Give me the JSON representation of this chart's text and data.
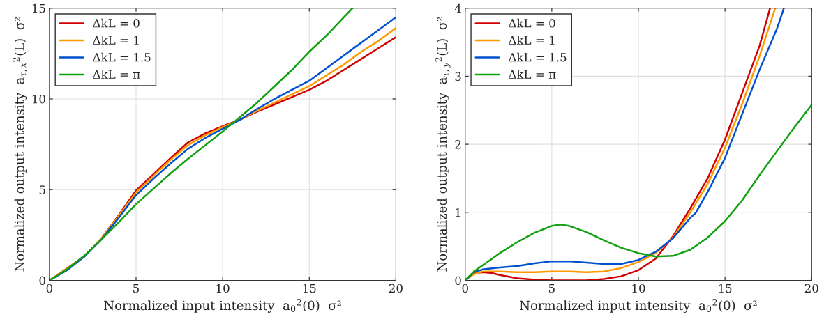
{
  "chart_data": [
    {
      "type": "line",
      "xlabel": "Normalized input intensity  a$_{0}$$^{2}$(0)  σ²",
      "ylabel": "Normalized output intensity  a$_{τ,x}$$^{2}$(L)  σ²",
      "xlim": [
        0,
        20
      ],
      "ylim": [
        0,
        15
      ],
      "xticks": [
        0,
        5,
        10,
        15,
        20
      ],
      "yticks": [
        0,
        5,
        10,
        15
      ],
      "grid": true,
      "legend": "top left",
      "line_style": "solid",
      "series": [
        {
          "name": "ΔkL = 0",
          "color": "#d00000",
          "x": [
            0,
            2,
            3,
            4,
            5,
            6,
            7,
            8,
            9,
            10,
            11,
            12,
            13,
            14,
            15,
            16,
            17,
            18,
            19,
            20
          ],
          "values": [
            0,
            1.3,
            2.3,
            3.6,
            4.95,
            5.85,
            6.75,
            7.6,
            8.1,
            8.5,
            8.85,
            9.3,
            9.7,
            10.1,
            10.5,
            11.0,
            11.6,
            12.2,
            12.8,
            13.4
          ]
        },
        {
          "name": "ΔkL = 1",
          "color": "#ff9900",
          "x": [
            0,
            2,
            3,
            4,
            5,
            6,
            7,
            8,
            9,
            10,
            11,
            12,
            13,
            14,
            15,
            16,
            17,
            18,
            19,
            20
          ],
          "values": [
            0,
            1.3,
            2.3,
            3.55,
            4.85,
            5.75,
            6.65,
            7.45,
            8.0,
            8.45,
            8.85,
            9.35,
            9.8,
            10.25,
            10.7,
            11.3,
            11.9,
            12.6,
            13.2,
            13.9
          ]
        },
        {
          "name": "ΔkL = 1.5",
          "color": "#0050d0",
          "x": [
            0,
            1,
            2,
            3,
            4,
            5,
            6,
            7,
            8,
            9,
            10,
            11,
            12,
            13,
            14,
            15,
            16,
            17,
            18,
            19,
            20
          ],
          "values": [
            0,
            0.55,
            1.3,
            2.25,
            3.45,
            4.7,
            5.6,
            6.45,
            7.25,
            7.85,
            8.35,
            8.85,
            9.45,
            10.0,
            10.5,
            11.0,
            11.7,
            12.4,
            13.1,
            13.8,
            14.5
          ]
        },
        {
          "name": "ΔkL = π",
          "color": "#10a010",
          "x": [
            0,
            1,
            2,
            3,
            4,
            5,
            6,
            7,
            8,
            9,
            10,
            11,
            12,
            13,
            14,
            15,
            16,
            17,
            17.5
          ],
          "values": [
            0,
            0.6,
            1.35,
            2.25,
            3.2,
            4.2,
            5.05,
            5.9,
            6.7,
            7.45,
            8.2,
            9.0,
            9.8,
            10.7,
            11.6,
            12.6,
            13.5,
            14.5,
            15
          ]
        }
      ]
    },
    {
      "type": "line",
      "xlabel": "Normalized input intensity  a$_{0}$$^{2}$(0)  σ²",
      "ylabel": "Normalized output intensity  a$_{τ,y}$$^{2}$(L)  σ²",
      "xlim": [
        0,
        20
      ],
      "ylim": [
        0,
        4
      ],
      "xticks": [
        0,
        5,
        10,
        15,
        20
      ],
      "yticks": [
        0,
        1,
        2,
        3,
        4
      ],
      "grid": true,
      "legend": "top left",
      "line_style": "solid",
      "series": [
        {
          "name": "ΔkL = 0",
          "color": "#d00000",
          "x": [
            0,
            0.5,
            1,
            1.5,
            2,
            3,
            4,
            5,
            6,
            7,
            8,
            9,
            10,
            11,
            12,
            13,
            14,
            15,
            16,
            17,
            17.6
          ],
          "values": [
            0,
            0.1,
            0.12,
            0.11,
            0.08,
            0.03,
            0.01,
            0,
            0,
            0,
            0.02,
            0.06,
            0.15,
            0.32,
            0.65,
            1.06,
            1.5,
            2.07,
            2.76,
            3.45,
            4
          ]
        },
        {
          "name": "ΔkL = 1",
          "color": "#ff9900",
          "x": [
            0,
            0.5,
            1,
            2,
            3,
            4,
            5,
            6,
            7,
            8,
            9,
            10,
            11,
            12,
            13,
            14,
            15,
            16,
            17,
            17.9
          ],
          "values": [
            0,
            0.09,
            0.13,
            0.13,
            0.12,
            0.12,
            0.13,
            0.13,
            0.12,
            0.13,
            0.18,
            0.27,
            0.4,
            0.63,
            1.0,
            1.42,
            1.95,
            2.6,
            3.3,
            4
          ]
        },
        {
          "name": "ΔkL = 1.5",
          "color": "#0050d0",
          "x": [
            0,
            0.5,
            1,
            2,
            3,
            4,
            5,
            6,
            7,
            8,
            9,
            10,
            11,
            12,
            13,
            13.3,
            14,
            15,
            16,
            17,
            18,
            18.4
          ],
          "values": [
            0,
            0.12,
            0.16,
            0.19,
            0.21,
            0.25,
            0.28,
            0.28,
            0.26,
            0.24,
            0.24,
            0.3,
            0.42,
            0.62,
            0.92,
            0.99,
            1.3,
            1.8,
            2.45,
            3.1,
            3.7,
            4
          ]
        },
        {
          "name": "ΔkL = π",
          "color": "#10a010",
          "x": [
            0,
            0.5,
            1,
            2,
            3,
            4,
            5,
            5.5,
            6,
            7,
            8,
            9,
            10,
            11,
            12,
            13,
            14,
            15,
            16,
            17,
            18,
            19,
            20
          ],
          "values": [
            0,
            0.13,
            0.22,
            0.4,
            0.56,
            0.7,
            0.8,
            0.82,
            0.8,
            0.71,
            0.59,
            0.48,
            0.4,
            0.35,
            0.36,
            0.45,
            0.63,
            0.87,
            1.18,
            1.55,
            1.9,
            2.25,
            2.58
          ]
        }
      ]
    }
  ]
}
